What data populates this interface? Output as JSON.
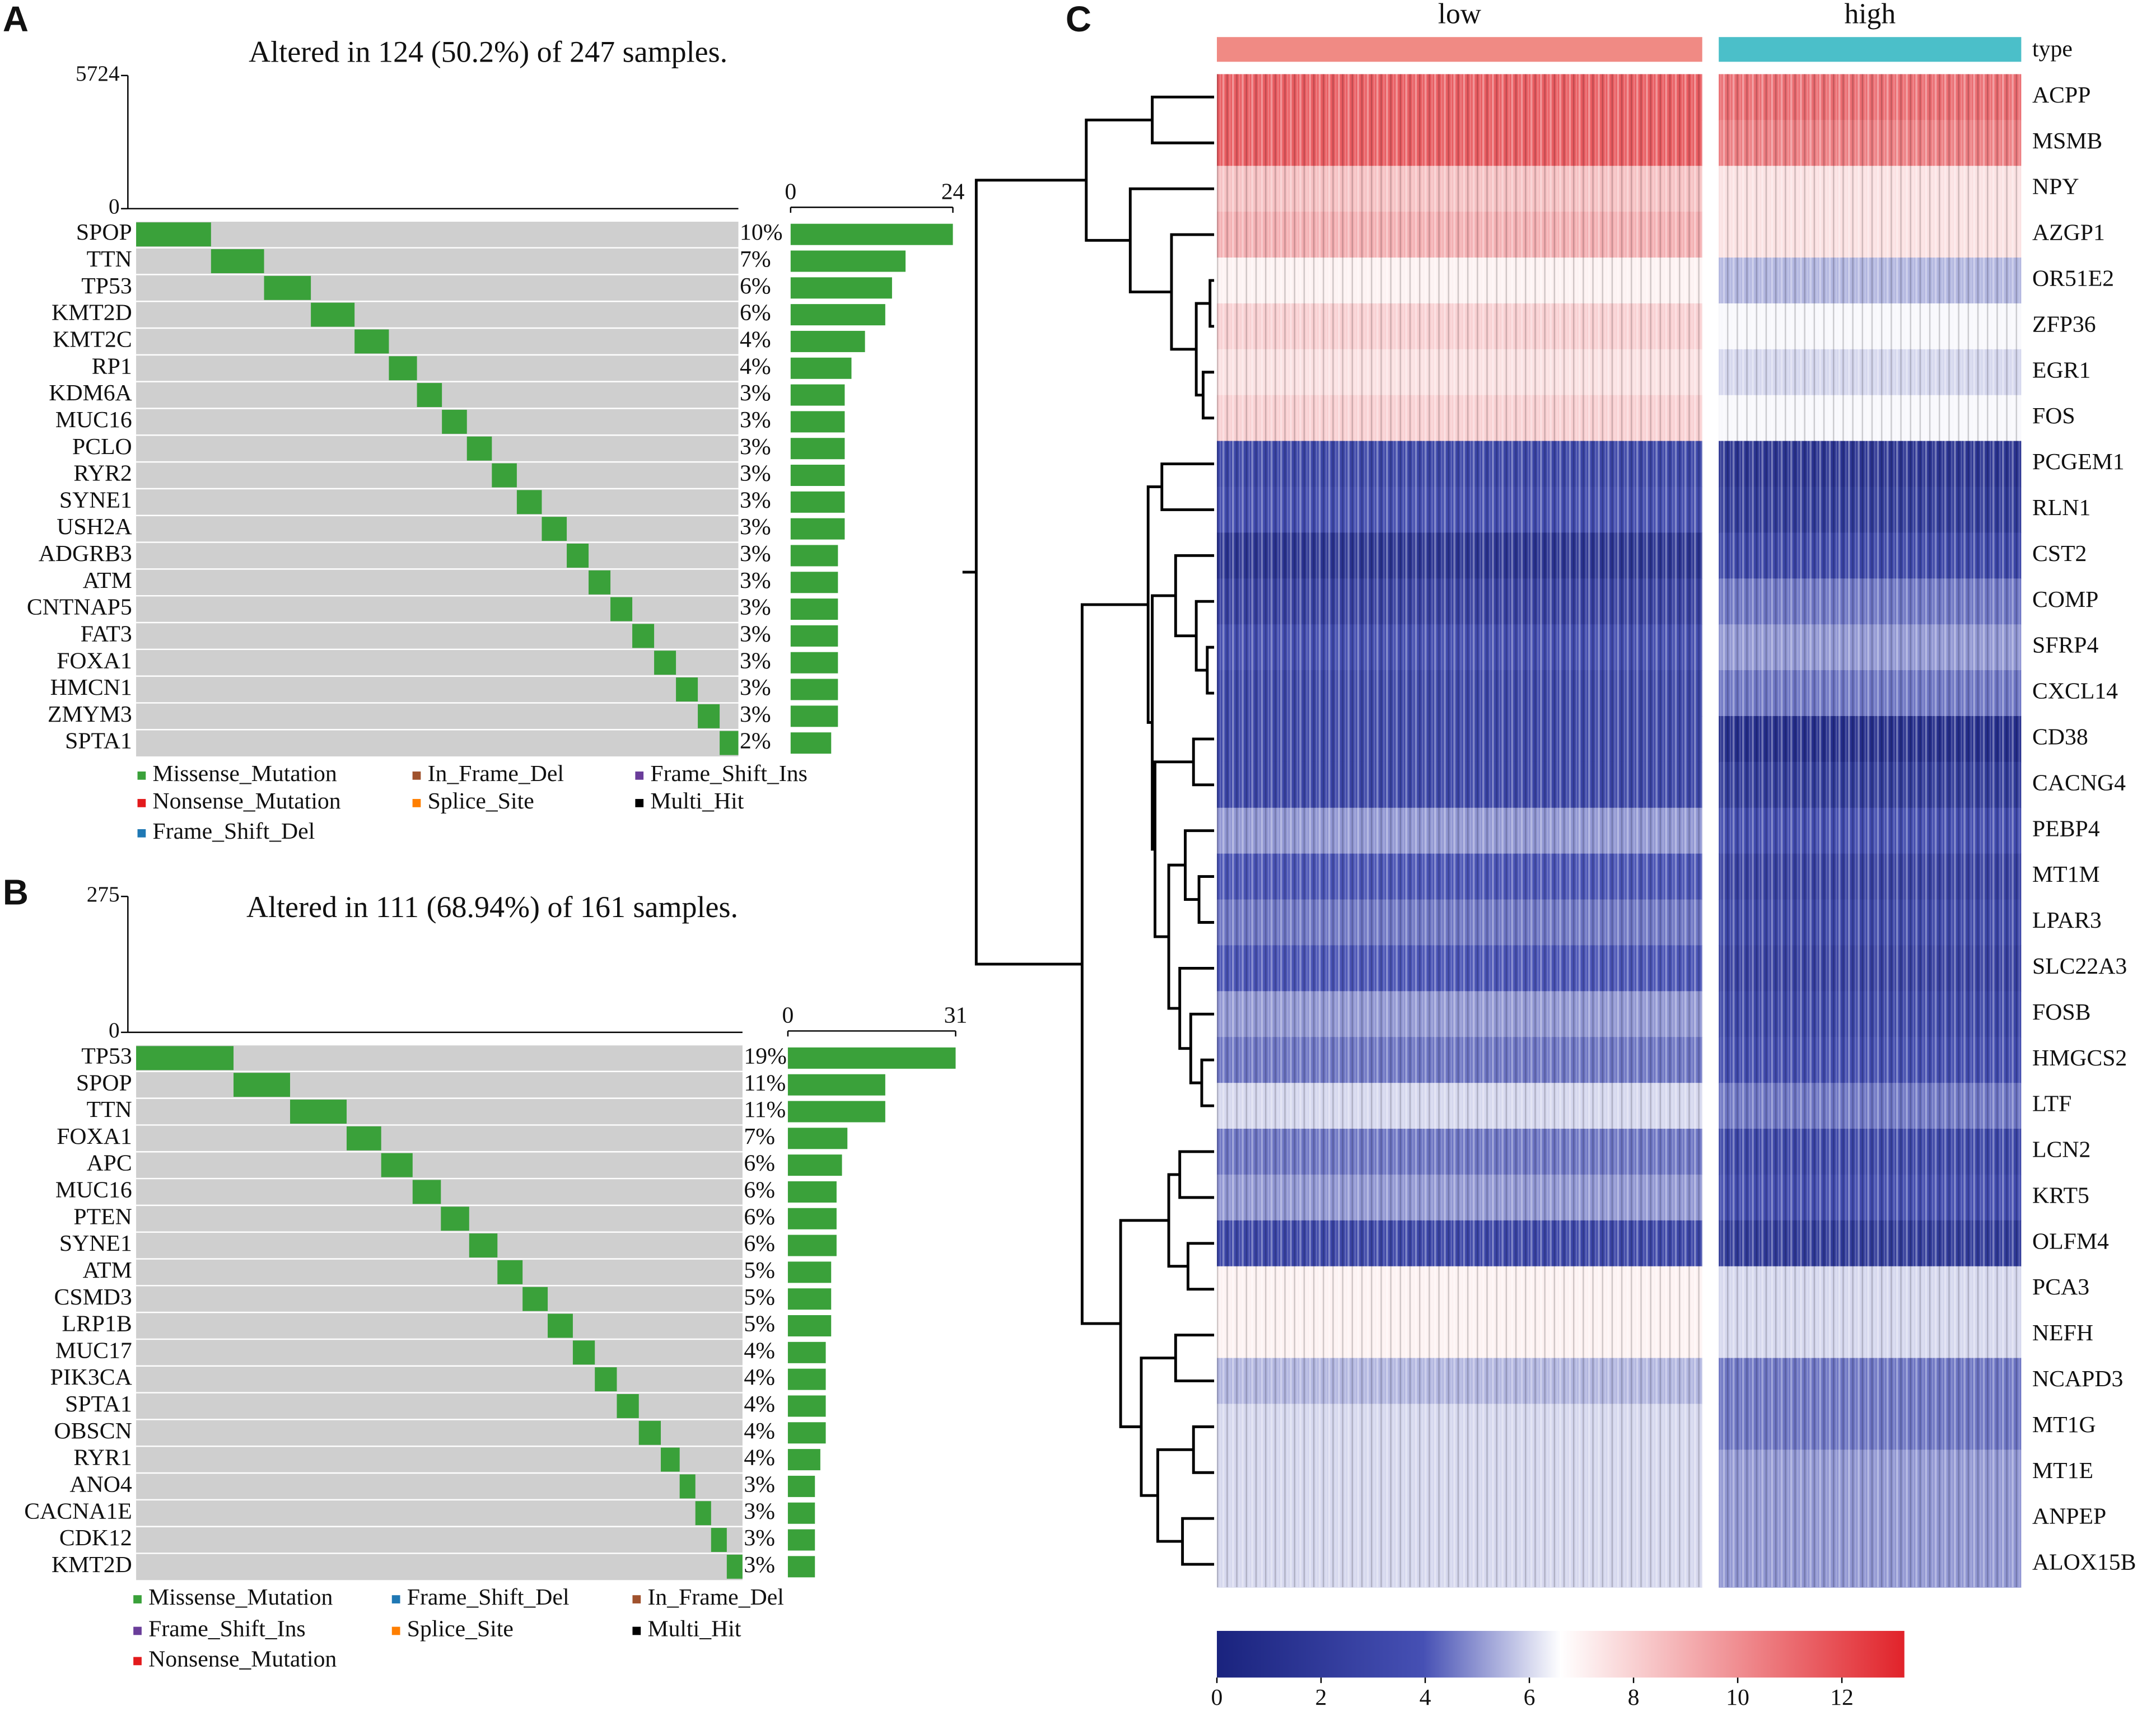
{
  "chart_data": [
    {
      "type": "oncoplot",
      "panel": "A",
      "title": "Altered in 124 (50.2%) of 247 samples.",
      "ylim": [
        0,
        5724
      ],
      "yticks": [
        0,
        5724
      ],
      "genes": [
        "SPOP",
        "TTN",
        "TP53",
        "KMT2D",
        "KMT2C",
        "RP1",
        "KDM6A",
        "MUC16",
        "PCLO",
        "RYR2",
        "SYNE1",
        "USH2A",
        "ADGRB3",
        "ATM",
        "CNTNAP5",
        "FAT3",
        "FOXA1",
        "HMCN1",
        "ZMYM3",
        "SPTA1"
      ],
      "percent_labels": [
        "10%",
        "7%",
        "6%",
        "6%",
        "4%",
        "4%",
        "3%",
        "3%",
        "3%",
        "3%",
        "3%",
        "3%",
        "3%",
        "3%",
        "3%",
        "3%",
        "3%",
        "3%",
        "3%",
        "2%"
      ],
      "values": [
        24,
        17,
        15,
        14,
        11,
        9,
        8,
        8,
        8,
        8,
        8,
        8,
        7,
        7,
        7,
        7,
        7,
        7,
        7,
        6
      ],
      "xlim": [
        0,
        24
      ],
      "xticks": [
        0,
        24
      ],
      "legend": [
        {
          "name": "Missense_Mutation",
          "color": "#3aa13a"
        },
        {
          "name": "In_Frame_Del",
          "color": "#a0522d"
        },
        {
          "name": "Frame_Shift_Ins",
          "color": "#6a3d9a"
        },
        {
          "name": "Nonsense_Mutation",
          "color": "#e31a1c"
        },
        {
          "name": "Splice_Site",
          "color": "#ff7f00"
        },
        {
          "name": "Multi_Hit",
          "color": "#000000"
        },
        {
          "name": "Frame_Shift_Del",
          "color": "#1f78b4"
        }
      ]
    },
    {
      "type": "oncoplot",
      "panel": "B",
      "title": "Altered in 111 (68.94%) of 161 samples.",
      "ylim": [
        0,
        275
      ],
      "yticks": [
        0,
        275
      ],
      "genes": [
        "TP53",
        "SPOP",
        "TTN",
        "FOXA1",
        "APC",
        "MUC16",
        "PTEN",
        "SYNE1",
        "ATM",
        "CSMD3",
        "LRP1B",
        "MUC17",
        "PIK3CA",
        "SPTA1",
        "OBSCN",
        "RYR1",
        "ANO4",
        "CACNA1E",
        "CDK12",
        "KMT2D"
      ],
      "percent_labels": [
        "19%",
        "11%",
        "11%",
        "7%",
        "6%",
        "6%",
        "6%",
        "6%",
        "5%",
        "5%",
        "5%",
        "4%",
        "4%",
        "4%",
        "4%",
        "4%",
        "3%",
        "3%",
        "3%",
        "3%"
      ],
      "values": [
        31,
        18,
        18,
        11,
        10,
        9,
        9,
        9,
        8,
        8,
        8,
        7,
        7,
        7,
        7,
        6,
        5,
        5,
        5,
        5
      ],
      "xlim": [
        0,
        31
      ],
      "xticks": [
        0,
        31
      ],
      "legend": [
        {
          "name": "Missense_Mutation",
          "color": "#3aa13a"
        },
        {
          "name": "Frame_Shift_Del",
          "color": "#1f78b4"
        },
        {
          "name": "In_Frame_Del",
          "color": "#a0522d"
        },
        {
          "name": "Frame_Shift_Ins",
          "color": "#6a3d9a"
        },
        {
          "name": "Splice_Site",
          "color": "#ff7f00"
        },
        {
          "name": "Multi_Hit",
          "color": "#000000"
        },
        {
          "name": "Nonsense_Mutation",
          "color": "#e31a1c"
        }
      ]
    },
    {
      "type": "heatmap",
      "panel": "C",
      "annotation_label": "type",
      "rows": [
        "ACPP",
        "MSMB",
        "NPY",
        "AZGP1",
        "OR51E2",
        "ZFP36",
        "EGR1",
        "FOS",
        "PCGEM1",
        "RLN1",
        "CST2",
        "COMP",
        "SFRP4",
        "CXCL14",
        "CD38",
        "CACNG4",
        "PEBP4",
        "MT1M",
        "LPAR3",
        "SLC22A3",
        "FOSB",
        "HMGCS2",
        "LTF",
        "LCN2",
        "KRT5",
        "OLFM4",
        "PCA3",
        "NEFH",
        "NCAPD3",
        "MT1G",
        "MT1E",
        "ANPEP",
        "ALOX15B"
      ],
      "series": [
        {
          "name": "low",
          "color": "#f08a84",
          "values": [
            11.5,
            11.5,
            8.5,
            9,
            7,
            8,
            7.5,
            8,
            3,
            3.5,
            1.5,
            2.5,
            3.5,
            3,
            3,
            3,
            5,
            4,
            4.5,
            4,
            5,
            4.5,
            6,
            4.5,
            5,
            3,
            7,
            7,
            5.5,
            6,
            6,
            6,
            6
          ]
        },
        {
          "name": "high",
          "color": "#4bbfc9",
          "values": [
            11,
            10.5,
            7.5,
            7.5,
            5.5,
            6.5,
            6,
            6.5,
            1.5,
            2,
            3,
            4.5,
            5,
            4.5,
            1,
            2,
            3.5,
            2.5,
            3,
            2.5,
            3,
            3.5,
            4.5,
            3,
            3.5,
            2,
            6,
            6,
            4.5,
            4.5,
            5,
            5,
            5
          ]
        }
      ],
      "clim": [
        0,
        13.2
      ],
      "cticks": [
        0,
        2,
        4,
        6,
        8,
        10,
        12
      ]
    }
  ]
}
